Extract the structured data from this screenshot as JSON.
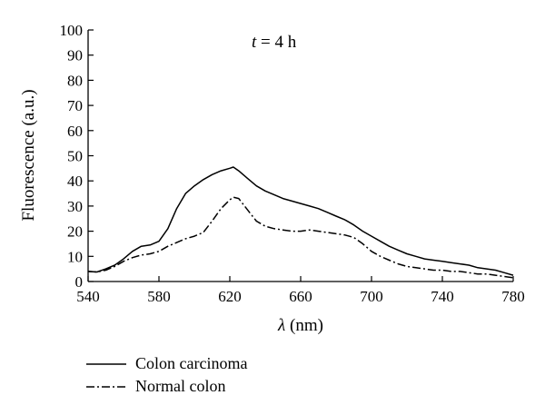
{
  "chart_data": {
    "type": "line",
    "title": "",
    "annotation": {
      "var": "t",
      "text": " = 4 h",
      "x": 645,
      "y": 93
    },
    "xlabel": {
      "var": "λ",
      "unit": " (nm)"
    },
    "ylabel": "Fluorescence (a.u.)",
    "xlim": [
      540,
      780
    ],
    "ylim": [
      0,
      100
    ],
    "xticks": [
      "540",
      "580",
      "620",
      "660",
      "700",
      "740",
      "780"
    ],
    "yticks": [
      "0",
      "10",
      "20",
      "30",
      "40",
      "50",
      "60",
      "70",
      "80",
      "90",
      "100"
    ],
    "grid": false,
    "legend_position": "bottom-left, below plot",
    "series": [
      {
        "name": "Colon carcinoma",
        "style": "solid",
        "x": [
          540,
          545,
          550,
          555,
          560,
          565,
          570,
          575,
          580,
          585,
          590,
          595,
          600,
          605,
          610,
          615,
          620,
          622,
          625,
          630,
          635,
          640,
          645,
          650,
          655,
          660,
          665,
          670,
          675,
          680,
          685,
          690,
          695,
          700,
          705,
          710,
          715,
          720,
          725,
          730,
          735,
          740,
          745,
          750,
          755,
          760,
          765,
          770,
          775,
          780
        ],
        "values": [
          4,
          3.8,
          5,
          6.5,
          9,
          12,
          14,
          14.5,
          16,
          21,
          29,
          35,
          38,
          40.5,
          42.5,
          44,
          45,
          45.5,
          44,
          41,
          38,
          36,
          34.5,
          33,
          32,
          31,
          30,
          29,
          27.5,
          26,
          24.5,
          22.5,
          20,
          18,
          16,
          14,
          12.5,
          11,
          10,
          9,
          8.5,
          8,
          7.5,
          7,
          6.5,
          5.5,
          5,
          4.5,
          3.5,
          2.5
        ]
      },
      {
        "name": "Normal colon",
        "style": "dash-dot",
        "x": [
          540,
          545,
          550,
          555,
          560,
          565,
          570,
          575,
          580,
          585,
          590,
          595,
          600,
          605,
          610,
          615,
          620,
          622,
          625,
          630,
          635,
          640,
          645,
          650,
          655,
          660,
          665,
          670,
          675,
          680,
          685,
          690,
          695,
          700,
          705,
          710,
          715,
          720,
          725,
          730,
          735,
          740,
          745,
          750,
          755,
          760,
          765,
          770,
          775,
          780
        ],
        "values": [
          4,
          3.8,
          4.5,
          6,
          8,
          9.5,
          10.5,
          11,
          12,
          14,
          15.5,
          17,
          18,
          19.5,
          24,
          29,
          32.5,
          33.5,
          33,
          28.5,
          24,
          22,
          21,
          20.5,
          20,
          20,
          20.5,
          20,
          19.5,
          19,
          18.5,
          17.5,
          15,
          12,
          10,
          8.5,
          7,
          6,
          5.5,
          5,
          4.5,
          4.5,
          4,
          4,
          3.5,
          3,
          3,
          2.5,
          2,
          1.5
        ]
      }
    ]
  }
}
